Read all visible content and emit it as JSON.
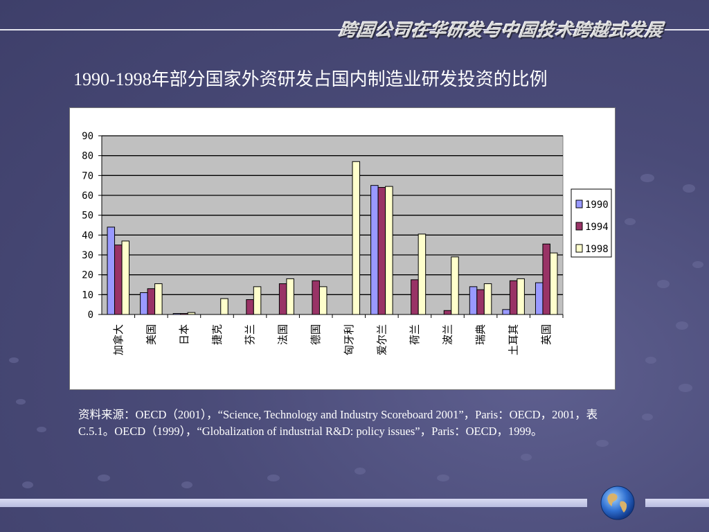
{
  "header": {
    "title": "跨国公司在华研发与中国技术跨越式发展"
  },
  "slide": {
    "title": "1990-1998年部分国家外资研发占国内制造业研发投资的比例",
    "source": "资料来源：OECD（2001），“Science, Technology and Industry Scoreboard 2001”，Paris：OECD，2001，表C.5.1。OECD（1999），“Globalization of industrial R&D: policy issues”，Paris：OECD，1999。"
  },
  "colors": {
    "s1990": "#9999ff",
    "s1994": "#993366",
    "s1998": "#ffffcc",
    "plot_bg": "#c0c0c0"
  },
  "chart_data": {
    "type": "bar",
    "categories": [
      "加拿大",
      "美国",
      "日本",
      "捷克",
      "芬兰",
      "法国",
      "德国",
      "匈牙利",
      "爱尔兰",
      "荷兰",
      "波兰",
      "瑞典",
      "土耳其",
      "英国"
    ],
    "series": [
      {
        "name": "1990",
        "values": [
          44,
          11,
          0.5,
          null,
          null,
          null,
          null,
          null,
          65,
          null,
          null,
          14,
          2.5,
          16
        ]
      },
      {
        "name": "1994",
        "values": [
          35,
          13,
          0.5,
          null,
          7.5,
          15.5,
          17,
          null,
          64,
          17.5,
          2,
          12.5,
          17,
          35.5
        ]
      },
      {
        "name": "1998",
        "values": [
          37,
          15.5,
          1,
          8,
          14,
          18,
          14,
          77,
          64.5,
          40.5,
          29,
          15.5,
          18,
          31
        ]
      }
    ],
    "yticks": [
      0,
      10,
      20,
      30,
      40,
      50,
      60,
      70,
      80,
      90
    ],
    "ylim": [
      0,
      90
    ],
    "legend_position": "right",
    "grid": true
  }
}
